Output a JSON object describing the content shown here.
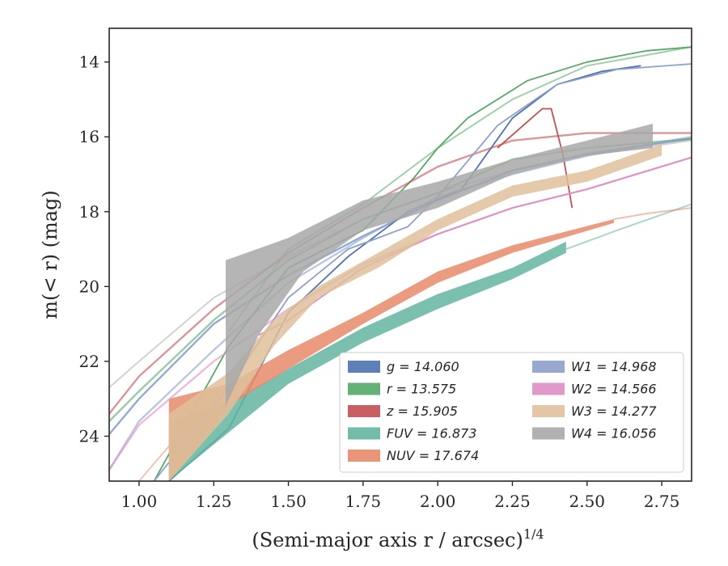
{
  "chart_data": {
    "type": "line",
    "xlabel": "(Semi-major axis r / arcsec)",
    "xlabel_sup": "1/4",
    "ylabel": "m(< r) (mag)",
    "xlim": [
      0.9,
      2.85
    ],
    "ylim": [
      25.2,
      13.1
    ],
    "y_inverted": true,
    "x_ticks": [
      "1.00",
      "1.25",
      "1.50",
      "1.75",
      "2.00",
      "2.25",
      "2.50",
      "2.75"
    ],
    "y_ticks": [
      "14",
      "16",
      "18",
      "20",
      "22",
      "24"
    ],
    "grid": false,
    "legend_position": "lower-right",
    "series": [
      {
        "name": "g = 14.060",
        "color": "#4c72b0",
        "kind": "line",
        "model": [
          [
            0.9,
            23.95
          ],
          [
            1.0,
            23.0
          ],
          [
            1.25,
            21.0
          ],
          [
            1.5,
            19.7
          ],
          [
            1.75,
            18.65
          ],
          [
            2.0,
            17.7
          ],
          [
            2.25,
            16.9
          ],
          [
            2.5,
            16.45
          ],
          [
            2.85,
            16.05
          ]
        ],
        "data": [
          [
            1.1,
            25.2
          ],
          [
            1.3,
            23.8
          ],
          [
            1.5,
            20.7
          ],
          [
            1.7,
            19.2
          ],
          [
            1.9,
            18.0
          ],
          [
            2.08,
            17.4
          ],
          [
            2.25,
            15.5
          ],
          [
            2.4,
            14.6
          ],
          [
            2.55,
            14.25
          ],
          [
            2.68,
            14.1
          ]
        ]
      },
      {
        "name": "r = 13.575",
        "color": "#55a868",
        "kind": "line",
        "model": [
          [
            0.9,
            23.6
          ],
          [
            1.0,
            22.8
          ],
          [
            1.25,
            20.9
          ],
          [
            1.5,
            19.3
          ],
          [
            1.75,
            18.2
          ],
          [
            2.0,
            17.5
          ],
          [
            2.25,
            16.6
          ],
          [
            2.5,
            16.3
          ],
          [
            2.85,
            16.05
          ]
        ],
        "data": [
          [
            1.05,
            25.2
          ],
          [
            1.3,
            21.6
          ],
          [
            1.5,
            19.5
          ],
          [
            1.75,
            18.5
          ],
          [
            1.92,
            17.1
          ],
          [
            2.0,
            16.3
          ],
          [
            2.1,
            15.5
          ],
          [
            2.3,
            14.5
          ],
          [
            2.5,
            14.0
          ],
          [
            2.7,
            13.7
          ],
          [
            2.85,
            13.6
          ]
        ],
        "extra": [
          [
            1.3,
            21.2
          ],
          [
            1.5,
            19.0
          ],
          [
            1.75,
            17.8
          ],
          [
            2.0,
            16.3
          ],
          [
            2.25,
            15.0
          ],
          [
            2.5,
            14.1
          ],
          [
            2.85,
            13.6
          ]
        ]
      },
      {
        "name": "z = 15.905",
        "color": "#c44e52",
        "kind": "line",
        "model": [
          [
            0.9,
            23.4
          ],
          [
            1.0,
            22.4
          ],
          [
            1.25,
            20.6
          ],
          [
            1.5,
            19.1
          ],
          [
            1.75,
            17.9
          ],
          [
            2.0,
            16.8
          ],
          [
            2.25,
            16.1
          ],
          [
            2.5,
            15.9
          ],
          [
            2.85,
            15.9
          ]
        ],
        "data": [
          [
            2.2,
            16.3
          ],
          [
            2.3,
            15.6
          ],
          [
            2.35,
            15.25
          ],
          [
            2.38,
            15.25
          ],
          [
            2.42,
            16.5
          ],
          [
            2.45,
            17.9
          ]
        ]
      },
      {
        "name": "FUV = 16.873",
        "color": "#64b5a0",
        "kind": "band",
        "lower": [
          [
            1.1,
            23.6
          ],
          [
            1.3,
            23.1
          ],
          [
            1.5,
            22.2
          ],
          [
            1.75,
            21.1
          ],
          [
            2.0,
            20.2
          ],
          [
            2.25,
            19.5
          ],
          [
            2.43,
            18.8
          ]
        ],
        "upper": [
          [
            1.1,
            25.2
          ],
          [
            1.3,
            23.9
          ],
          [
            1.5,
            22.6
          ],
          [
            1.75,
            21.5
          ],
          [
            2.0,
            20.6
          ],
          [
            2.25,
            19.8
          ],
          [
            2.43,
            19.1
          ]
        ],
        "tail": [
          [
            2.43,
            19.0
          ],
          [
            2.6,
            18.5
          ],
          [
            2.85,
            17.8
          ]
        ]
      },
      {
        "name": "NUV = 17.674",
        "color": "#e8896a",
        "kind": "band",
        "lower": [
          [
            1.1,
            23.0
          ],
          [
            1.3,
            22.6
          ],
          [
            1.5,
            21.7
          ],
          [
            1.75,
            20.7
          ],
          [
            2.0,
            19.6
          ],
          [
            2.25,
            18.9
          ],
          [
            2.59,
            18.2
          ]
        ],
        "upper": [
          [
            1.1,
            25.2
          ],
          [
            1.3,
            23.2
          ],
          [
            1.5,
            22.2
          ],
          [
            1.75,
            21.0
          ],
          [
            2.0,
            19.9
          ],
          [
            2.25,
            19.1
          ],
          [
            2.59,
            18.3
          ]
        ],
        "tail": [
          [
            2.59,
            18.2
          ],
          [
            2.7,
            18.05
          ],
          [
            2.85,
            17.9
          ]
        ]
      },
      {
        "name": "W1 = 14.968",
        "color": "#8da0cb",
        "kind": "line",
        "model": [
          [
            0.9,
            24.9
          ],
          [
            1.0,
            23.6
          ],
          [
            1.25,
            21.7
          ],
          [
            1.5,
            19.9
          ],
          [
            1.75,
            18.7
          ],
          [
            2.0,
            17.6
          ],
          [
            2.25,
            17.0
          ],
          [
            2.5,
            16.5
          ],
          [
            2.85,
            16.0
          ]
        ],
        "data": [
          [
            1.05,
            25.2
          ],
          [
            1.3,
            22.7
          ],
          [
            1.5,
            20.3
          ],
          [
            1.7,
            19.0
          ],
          [
            1.9,
            18.4
          ],
          [
            2.0,
            17.6
          ],
          [
            2.2,
            15.7
          ],
          [
            2.4,
            14.6
          ],
          [
            2.6,
            14.2
          ],
          [
            2.85,
            14.05
          ]
        ]
      },
      {
        "name": "W2 = 14.566",
        "color": "#dd8fc4",
        "kind": "line",
        "model": [
          [
            0.9,
            24.9
          ],
          [
            1.0,
            23.7
          ],
          [
            1.25,
            22.0
          ],
          [
            1.5,
            20.6
          ],
          [
            1.75,
            19.4
          ],
          [
            2.0,
            18.6
          ],
          [
            2.25,
            17.9
          ],
          [
            2.5,
            17.4
          ],
          [
            2.85,
            16.55
          ]
        ],
        "data": [
          [
            1.4,
            21.3
          ],
          [
            1.5,
            20.9
          ],
          [
            1.75,
            19.5
          ],
          [
            2.0,
            18.6
          ],
          [
            2.25,
            17.9
          ],
          [
            2.5,
            17.4
          ],
          [
            2.85,
            16.55
          ]
        ]
      },
      {
        "name": "W3 = 14.277",
        "color": "#dfc09b",
        "kind": "band",
        "lower": [
          [
            1.1,
            23.4
          ],
          [
            1.3,
            22.3
          ],
          [
            1.45,
            20.9
          ],
          [
            1.6,
            20.0
          ],
          [
            1.8,
            19.1
          ],
          [
            2.0,
            18.2
          ],
          [
            2.25,
            17.3
          ],
          [
            2.5,
            16.9
          ],
          [
            2.75,
            16.2
          ]
        ],
        "upper": [
          [
            1.1,
            25.2
          ],
          [
            1.3,
            23.4
          ],
          [
            1.45,
            21.6
          ],
          [
            1.6,
            20.3
          ],
          [
            1.8,
            19.5
          ],
          [
            2.0,
            18.5
          ],
          [
            2.25,
            17.6
          ],
          [
            2.5,
            17.2
          ],
          [
            2.75,
            16.5
          ]
        ]
      },
      {
        "name": "W4 = 16.056",
        "color": "#a8a8a8",
        "kind": "band",
        "lower": [
          [
            1.29,
            19.3
          ],
          [
            1.5,
            18.7
          ],
          [
            1.75,
            17.7
          ],
          [
            2.0,
            17.2
          ],
          [
            2.25,
            16.6
          ],
          [
            2.5,
            16.1
          ],
          [
            2.72,
            15.65
          ]
        ],
        "upper": [
          [
            1.29,
            23.2
          ],
          [
            1.4,
            21.3
          ],
          [
            1.55,
            19.6
          ],
          [
            1.75,
            18.5
          ],
          [
            2.0,
            17.9
          ],
          [
            2.25,
            17.0
          ],
          [
            2.5,
            16.5
          ],
          [
            2.72,
            16.3
          ]
        ]
      }
    ],
    "extra_lines": [
      {
        "color": "#c7c7c7",
        "points": [
          [
            0.9,
            22.7
          ],
          [
            1.0,
            22.0
          ],
          [
            1.25,
            20.3
          ],
          [
            1.5,
            19.2
          ],
          [
            1.75,
            18.2
          ],
          [
            2.0,
            17.5
          ],
          [
            2.25,
            16.9
          ],
          [
            2.5,
            16.5
          ],
          [
            2.85,
            16.1
          ]
        ]
      },
      {
        "color": "#e8b8a0",
        "points": [
          [
            1.0,
            25.2
          ],
          [
            1.15,
            23.8
          ],
          [
            1.3,
            22.8
          ]
        ]
      }
    ]
  }
}
